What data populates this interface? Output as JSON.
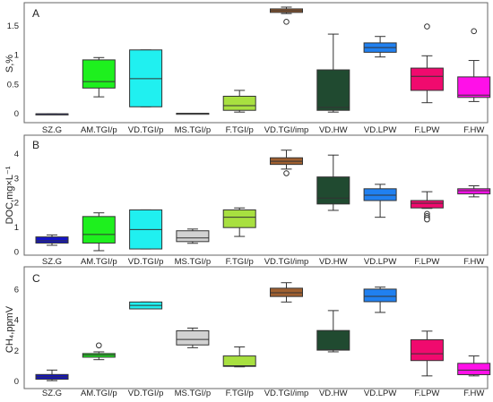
{
  "categories": [
    "SZ.G",
    "AM.TGI/p",
    "VD.TGI/p",
    "MS.TGI/p",
    "F.TGI/p",
    "VD.TGI/imp",
    "VD.HW",
    "VD.LPW",
    "F.LPW",
    "F.HW"
  ],
  "colors": [
    "#1414c8",
    "#1ef01e",
    "#20f0f0",
    "#d2d2d2",
    "#a8e040",
    "#a06030",
    "#204a30",
    "#2080f0",
    "#f00a6e",
    "#ff10e8"
  ],
  "chart_data": [
    {
      "type": "box",
      "panel": "A",
      "ylabel": "S,%",
      "ylim": [
        -0.12,
        1.85
      ],
      "yticks": [
        0,
        0.5,
        1,
        1.5
      ],
      "ytick_labels": [
        "0",
        "0.5",
        "1",
        "1.5"
      ],
      "boxes": [
        {
          "min": 0.0,
          "q1": 0.0,
          "median": 0.0,
          "q3": 0.0,
          "max": 0.0,
          "outliers": []
        },
        {
          "min": 0.29,
          "q1": 0.44,
          "median": 0.55,
          "q3": 0.92,
          "max": 0.96,
          "outliers": []
        },
        {
          "min": 0.12,
          "q1": 0.12,
          "median": 0.6,
          "q3": 1.09,
          "max": 1.09,
          "outliers": []
        },
        {
          "min": 0.01,
          "q1": 0.01,
          "median": 0.01,
          "q3": 0.01,
          "max": 0.01,
          "outliers": []
        },
        {
          "min": 0.03,
          "q1": 0.06,
          "median": 0.14,
          "q3": 0.3,
          "max": 0.4,
          "outliers": []
        },
        {
          "min": 1.71,
          "q1": 1.73,
          "median": 1.76,
          "q3": 1.79,
          "max": 1.82,
          "outliers": [
            1.57
          ]
        },
        {
          "min": 0.03,
          "q1": 0.06,
          "median": 0.11,
          "q3": 0.75,
          "max": 1.36,
          "outliers": []
        },
        {
          "min": 0.97,
          "q1": 1.05,
          "median": 1.13,
          "q3": 1.21,
          "max": 1.32,
          "outliers": []
        },
        {
          "min": 0.19,
          "q1": 0.4,
          "median": 0.64,
          "q3": 0.78,
          "max": 0.99,
          "outliers": [
            1.49
          ]
        },
        {
          "min": 0.21,
          "q1": 0.28,
          "median": 0.32,
          "q3": 0.63,
          "max": 0.91,
          "outliers": [
            1.41
          ]
        }
      ]
    },
    {
      "type": "box",
      "panel": "B",
      "ylabel": "DOC,mg×L⁻¹",
      "ylim": [
        -0.05,
        4.65
      ],
      "yticks": [
        0,
        1,
        2,
        3,
        4
      ],
      "ytick_labels": [
        "0",
        "1",
        "2",
        "3",
        "4"
      ],
      "boxes": [
        {
          "min": 0.28,
          "q1": 0.37,
          "median": 0.46,
          "q3": 0.62,
          "max": 0.7,
          "outliers": []
        },
        {
          "min": 0.06,
          "q1": 0.37,
          "median": 0.72,
          "q3": 1.45,
          "max": 1.6,
          "outliers": []
        },
        {
          "min": 0.13,
          "q1": 0.13,
          "median": 0.92,
          "q3": 1.72,
          "max": 1.72,
          "outliers": []
        },
        {
          "min": 0.36,
          "q1": 0.43,
          "median": 0.58,
          "q3": 0.87,
          "max": 0.94,
          "outliers": []
        },
        {
          "min": 0.64,
          "q1": 1.0,
          "median": 1.42,
          "q3": 1.72,
          "max": 1.8,
          "outliers": []
        },
        {
          "min": 3.38,
          "q1": 3.57,
          "median": 3.7,
          "q3": 3.84,
          "max": 4.15,
          "outliers": [
            3.21
          ]
        },
        {
          "min": 1.7,
          "q1": 1.96,
          "median": 2.2,
          "q3": 3.06,
          "max": 3.95,
          "outliers": []
        },
        {
          "min": 1.42,
          "q1": 2.1,
          "median": 2.32,
          "q3": 2.58,
          "max": 2.76,
          "outliers": []
        },
        {
          "min": 1.78,
          "q1": 1.8,
          "median": 1.99,
          "q3": 2.1,
          "max": 2.46,
          "outliers": [
            1.56,
            1.47,
            1.4,
            1.33
          ]
        },
        {
          "min": 2.25,
          "q1": 2.37,
          "median": 2.5,
          "q3": 2.58,
          "max": 2.7,
          "outliers": []
        }
      ]
    },
    {
      "type": "box",
      "panel": "C",
      "ylabel": "CH₄,ppmV",
      "ylim": [
        -0.35,
        7.3
      ],
      "yticks": [
        0,
        2,
        4,
        6
      ],
      "ytick_labels": [
        "0",
        "2",
        "4",
        "6"
      ],
      "boxes": [
        {
          "min": 0.05,
          "q1": 0.14,
          "median": 0.3,
          "q3": 0.45,
          "max": 0.74,
          "outliers": []
        },
        {
          "min": 1.42,
          "q1": 1.58,
          "median": 1.72,
          "q3": 1.82,
          "max": 1.93,
          "outliers": [
            2.35
          ]
        },
        {
          "min": 4.73,
          "q1": 4.73,
          "median": 4.96,
          "q3": 5.18,
          "max": 5.18,
          "outliers": []
        },
        {
          "min": 2.2,
          "q1": 2.38,
          "median": 2.74,
          "q3": 3.3,
          "max": 3.48,
          "outliers": []
        },
        {
          "min": 0.95,
          "q1": 0.98,
          "median": 1.02,
          "q3": 1.66,
          "max": 2.25,
          "outliers": []
        },
        {
          "min": 5.18,
          "q1": 5.54,
          "median": 5.78,
          "q3": 6.08,
          "max": 6.44,
          "outliers": []
        },
        {
          "min": 1.93,
          "q1": 2.04,
          "median": 2.06,
          "q3": 3.32,
          "max": 4.62,
          "outliers": []
        },
        {
          "min": 4.5,
          "q1": 5.2,
          "median": 5.55,
          "q3": 6.02,
          "max": 6.15,
          "outliers": []
        },
        {
          "min": 0.36,
          "q1": 1.36,
          "median": 1.8,
          "q3": 2.72,
          "max": 3.28,
          "outliers": []
        },
        {
          "min": 0.36,
          "q1": 0.44,
          "median": 0.74,
          "q3": 1.18,
          "max": 1.66,
          "outliers": []
        }
      ]
    }
  ]
}
